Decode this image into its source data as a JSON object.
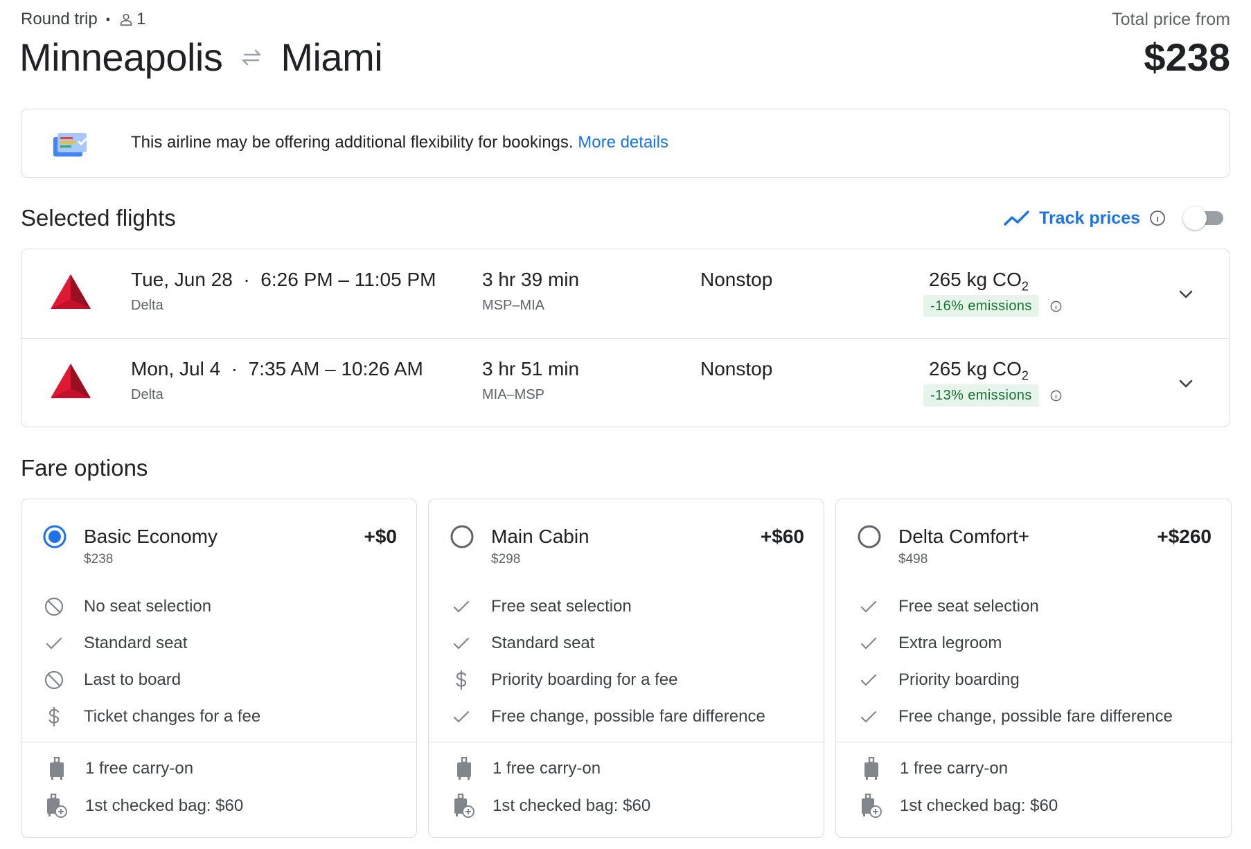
{
  "trip": {
    "type": "Round trip",
    "passengers": "1",
    "origin": "Minneapolis",
    "destination": "Miami",
    "total_label": "Total price from",
    "total_price": "$238"
  },
  "notice": {
    "text": "This airline may be offering additional flexibility for bookings.",
    "link": "More details"
  },
  "selected_flights": {
    "title": "Selected flights",
    "track_label": "Track prices",
    "track_enabled": false,
    "flights": [
      {
        "date": "Tue, Jun 28",
        "times": "6:26 PM – 11:05 PM",
        "airline": "Delta",
        "duration": "3 hr 39 min",
        "airports": "MSP–MIA",
        "stops": "Nonstop",
        "co2": "265 kg CO",
        "co2_sub": "2",
        "emissions": "-16% emissions"
      },
      {
        "date": "Mon, Jul 4",
        "times": "7:35 AM – 10:26 AM",
        "airline": "Delta",
        "duration": "3 hr 51 min",
        "airports": "MIA–MSP",
        "stops": "Nonstop",
        "co2": "265 kg CO",
        "co2_sub": "2",
        "emissions": "-13% emissions"
      }
    ]
  },
  "fare_options": {
    "title": "Fare options",
    "cards": [
      {
        "name": "Basic Economy",
        "price": "$238",
        "delta": "+$0",
        "selected": true,
        "features": [
          {
            "icon": "no-icon",
            "text": "No seat selection"
          },
          {
            "icon": "check-icon",
            "text": "Standard seat"
          },
          {
            "icon": "no-icon",
            "text": "Last to board"
          },
          {
            "icon": "dollar-icon",
            "text": "Ticket changes for a fee"
          }
        ],
        "bags": [
          {
            "icon": "carry-on-icon",
            "text": "1 free carry-on"
          },
          {
            "icon": "checked-bag-icon",
            "text": "1st checked bag: $60"
          }
        ]
      },
      {
        "name": "Main Cabin",
        "price": "$298",
        "delta": "+$60",
        "selected": false,
        "features": [
          {
            "icon": "check-icon",
            "text": "Free seat selection"
          },
          {
            "icon": "check-icon",
            "text": "Standard seat"
          },
          {
            "icon": "dollar-icon",
            "text": "Priority boarding for a fee"
          },
          {
            "icon": "check-icon",
            "text": "Free change, possible fare difference"
          }
        ],
        "bags": [
          {
            "icon": "carry-on-icon",
            "text": "1 free carry-on"
          },
          {
            "icon": "checked-bag-icon",
            "text": "1st checked bag: $60"
          }
        ]
      },
      {
        "name": "Delta Comfort+",
        "price": "$498",
        "delta": "+$260",
        "selected": false,
        "features": [
          {
            "icon": "check-icon",
            "text": "Free seat selection"
          },
          {
            "icon": "check-icon",
            "text": "Extra legroom"
          },
          {
            "icon": "check-icon",
            "text": "Priority boarding"
          },
          {
            "icon": "check-icon",
            "text": "Free change, possible fare difference"
          }
        ],
        "bags": [
          {
            "icon": "carry-on-icon",
            "text": "1 free carry-on"
          },
          {
            "icon": "checked-bag-icon",
            "text": "1st checked bag: $60"
          }
        ]
      }
    ]
  },
  "colors": {
    "accent": "#1a73e8",
    "text": "#202124",
    "muted": "#5f6368",
    "border": "#dadce0",
    "emissions_bg": "#e6f4ea",
    "emissions_text": "#137333",
    "delta_red": "#e01933"
  }
}
